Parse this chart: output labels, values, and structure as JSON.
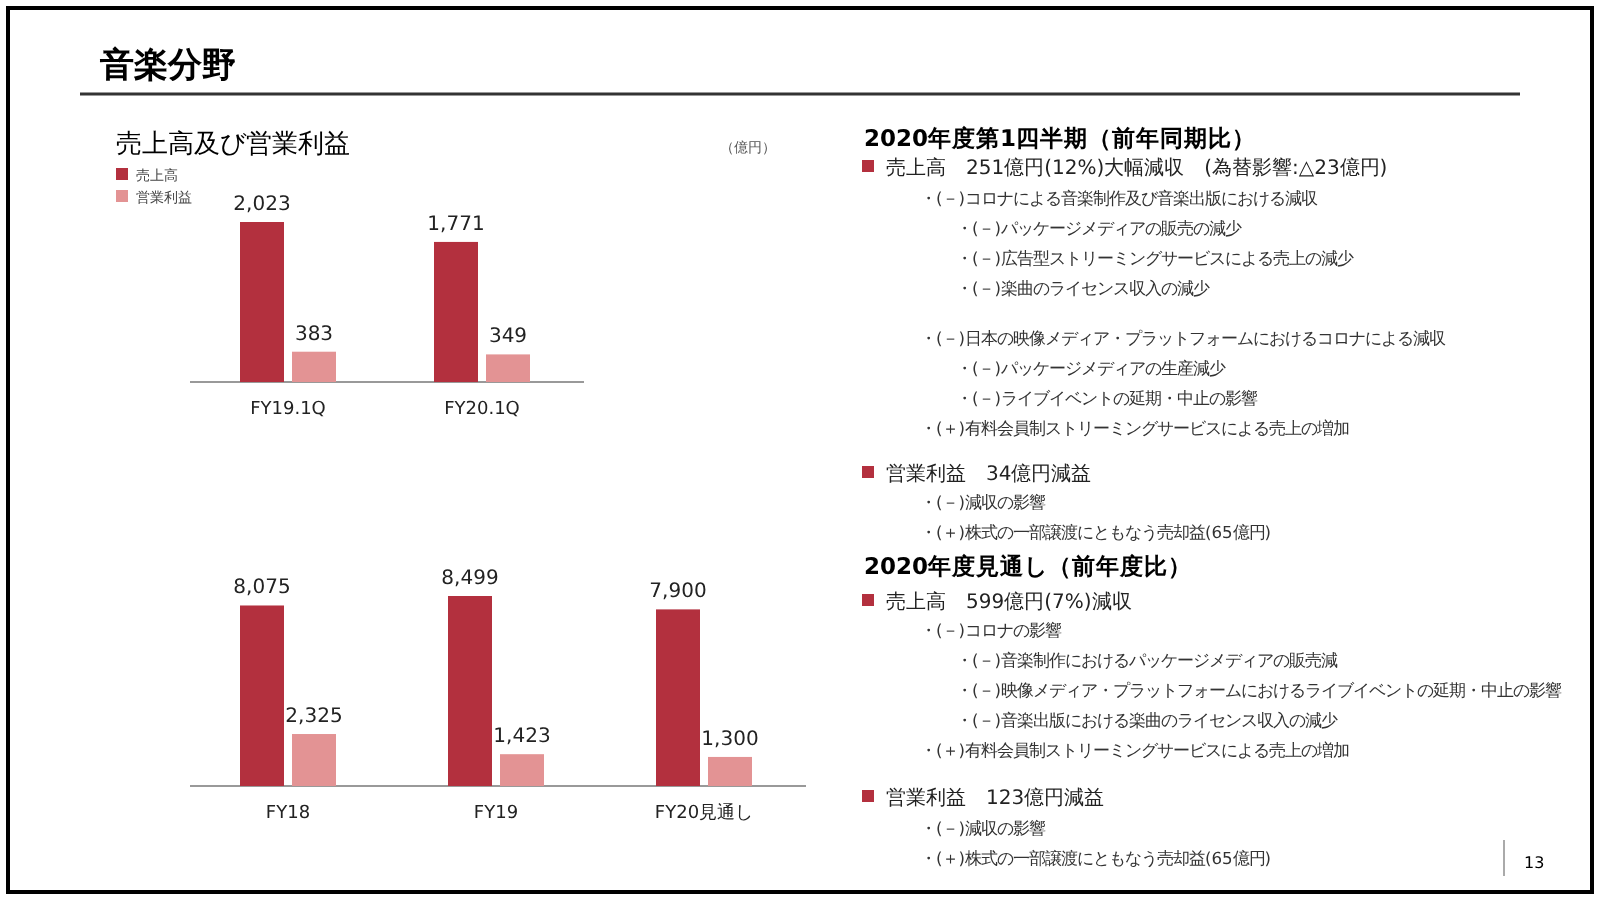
{
  "chart_data": [
    {
      "type": "bar",
      "title": "売上高及び営業利益",
      "ylabel": "（億円）",
      "categories": [
        "FY19.1Q",
        "FY20.1Q"
      ],
      "series": [
        {
          "name": "売上高",
          "color": "#b3303e",
          "values": [
            2023,
            1771
          ],
          "value_labels": [
            "2,023",
            "1,771"
          ]
        },
        {
          "name": "営業利益",
          "color": "#e39394",
          "values": [
            383,
            349
          ],
          "value_labels": [
            "383",
            "349"
          ]
        }
      ],
      "legend": "top left"
    },
    {
      "type": "bar",
      "categories": [
        "FY18",
        "FY19",
        "FY20見通し"
      ],
      "series": [
        {
          "color": "#b3303e",
          "values": [
            8075,
            8499,
            7900
          ],
          "value_labels": [
            "8,075",
            "8,499",
            "7,900"
          ]
        },
        {
          "color": "#e39394",
          "values": [
            2325,
            1423,
            1300
          ],
          "value_labels": [
            "2,325",
            "1,423",
            "1,300"
          ]
        }
      ]
    },
    {
      "type": "other",
      "title": "音楽分野",
      "annotations": [
        "2020年度第1四半期（前年同期比）",
        "売上高　251億円(12%)大幅減収　(為替影響:△23億円)",
        "・(－)コロナによる音楽制作及び音楽出版における減収",
        "・(－)パッケージメディアの販売の減少",
        "・(－)広告型ストリーミングサービスによる売上の減少",
        "・(－)楽曲のライセンス収入の減少",
        "・(－)日本の映像メディア・プラットフォームにおけるコロナによる減収",
        "・(－)パッケージメディアの生産減少",
        "・(－)ライブイベントの延期・中止の影響",
        "・(＋)有料会員制ストリーミングサービスによる売上の増加",
        "営業利益　34億円減益",
        "・(－)減収の影響",
        "・(＋)株式の一部譲渡にともなう売却益(65億円)",
        "2020年度見通し（前年度比）",
        "売上高　599億円(7%)減収",
        "・(－)コロナの影響",
        "・(－)音楽制作におけるパッケージメディアの販売減",
        "・(－)映像メディア・プラットフォームにおけるライブイベントの延期・中止の影響",
        "・(－)音楽出版における楽曲のライセンス収入の減少",
        "・(＋)有料会員制ストリーミングサービスによる売上の増加",
        "営業利益　123億円減益",
        "・(－)減収の影響",
        "・(＋)株式の一部譲渡にともなう売却益(65億円)",
        "13"
      ]
    }
  ]
}
